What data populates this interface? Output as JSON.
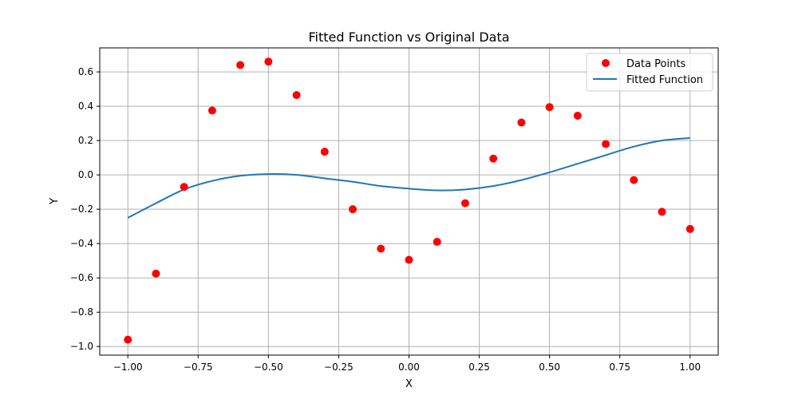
{
  "chart_data": {
    "type": "scatter",
    "title": "Fitted Function vs Original Data",
    "xlabel": "X",
    "ylabel": "Y",
    "xlim": [
      -1.1,
      1.1
    ],
    "ylim": [
      -1.05,
      0.74
    ],
    "xticks": [
      -1.0,
      -0.75,
      -0.5,
      -0.25,
      0.0,
      0.25,
      0.5,
      0.75,
      1.0
    ],
    "xtick_labels": [
      "−1.00",
      "−0.75",
      "−0.50",
      "−0.25",
      "0.00",
      "0.25",
      "0.50",
      "0.75",
      "1.00"
    ],
    "yticks": [
      -1.0,
      -0.8,
      -0.6,
      -0.4,
      -0.2,
      0.0,
      0.2,
      0.4,
      0.6
    ],
    "ytick_labels": [
      "−1.0",
      "−0.8",
      "−0.6",
      "−0.4",
      "−0.2",
      "0.0",
      "0.2",
      "0.4",
      "0.6"
    ],
    "grid": true,
    "legend_position": "top-right",
    "series": [
      {
        "name": "Data Points",
        "kind": "scatter",
        "color": "#ff0000",
        "x": [
          -1.0,
          -0.9,
          -0.8,
          -0.7,
          -0.6,
          -0.5,
          -0.4,
          -0.3,
          -0.2,
          -0.1,
          0.0,
          0.1,
          0.2,
          0.3,
          0.4,
          0.5,
          0.6,
          0.7,
          0.8,
          0.9,
          1.0
        ],
        "y": [
          -0.96,
          -0.575,
          -0.07,
          0.375,
          0.64,
          0.66,
          0.465,
          0.135,
          -0.2,
          -0.43,
          -0.495,
          -0.39,
          -0.165,
          0.095,
          0.305,
          0.395,
          0.345,
          0.18,
          -0.03,
          -0.215,
          -0.315
        ]
      },
      {
        "name": "Fitted Function",
        "kind": "line",
        "color": "#1f77b4",
        "x": [
          -1.0,
          -0.9,
          -0.8,
          -0.7,
          -0.6,
          -0.5,
          -0.4,
          -0.3,
          -0.2,
          -0.1,
          0.0,
          0.1,
          0.2,
          0.3,
          0.4,
          0.5,
          0.6,
          0.7,
          0.8,
          0.9,
          1.0
        ],
        "y": [
          -0.25,
          -0.165,
          -0.085,
          -0.035,
          -0.005,
          0.005,
          0.0,
          -0.02,
          -0.04,
          -0.065,
          -0.08,
          -0.09,
          -0.085,
          -0.065,
          -0.03,
          0.015,
          0.065,
          0.115,
          0.165,
          0.2,
          0.215
        ]
      }
    ]
  }
}
